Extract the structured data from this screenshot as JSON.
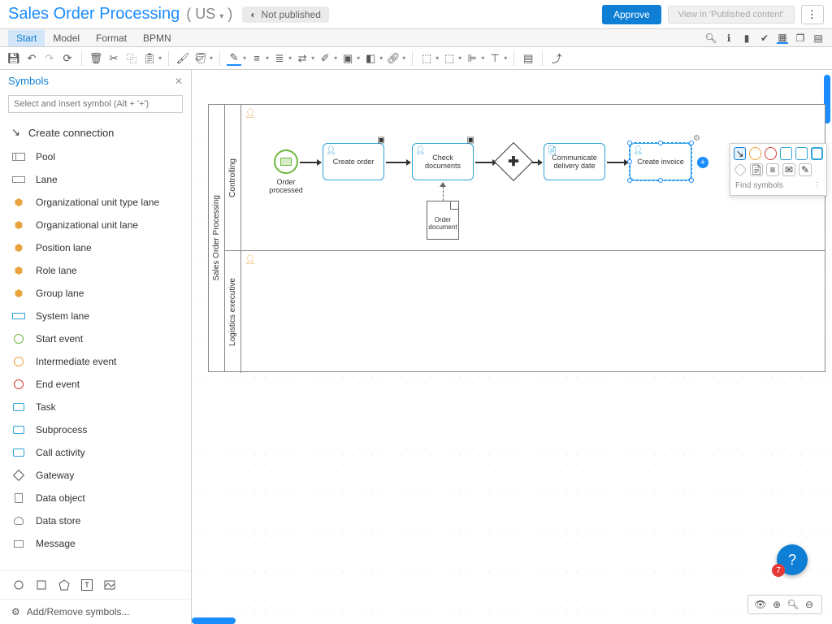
{
  "header": {
    "title": "Sales Order Processing",
    "locale": "US",
    "published_badge": "Not published",
    "approve_label": "Approve",
    "view_label": "View in 'Published content'"
  },
  "tabs": {
    "items": [
      "Start",
      "Model",
      "Format",
      "BPMN"
    ],
    "active_index": 0
  },
  "sidebar": {
    "title": "Symbols",
    "search_placeholder": "Select and insert symbol (Alt + '+')",
    "create_connection": "Create connection",
    "items": [
      {
        "label": "Pool",
        "icon": "pool",
        "color": "#888"
      },
      {
        "label": "Lane",
        "icon": "lane",
        "color": "#888"
      },
      {
        "label": "Organizational unit type lane",
        "icon": "org",
        "color": "#e8a33d"
      },
      {
        "label": "Organizational unit lane",
        "icon": "org",
        "color": "#e8a33d"
      },
      {
        "label": "Position lane",
        "icon": "org",
        "color": "#e8a33d"
      },
      {
        "label": "Role lane",
        "icon": "org",
        "color": "#e8a33d"
      },
      {
        "label": "Group lane",
        "icon": "org",
        "color": "#e8a33d"
      },
      {
        "label": "System lane",
        "icon": "lane",
        "color": "#2ea3d6"
      },
      {
        "label": "Start event",
        "icon": "circle",
        "color": "#6fb83f"
      },
      {
        "label": "Intermediate event",
        "icon": "circle",
        "color": "#e8a33d"
      },
      {
        "label": "End event",
        "icon": "circle",
        "color": "#d23b3b"
      },
      {
        "label": "Task",
        "icon": "task",
        "color": "#2ea3d6"
      },
      {
        "label": "Subprocess",
        "icon": "task",
        "color": "#2ea3d6"
      },
      {
        "label": "Call activity",
        "icon": "task",
        "color": "#2ea3d6"
      },
      {
        "label": "Gateway",
        "icon": "gateway",
        "color": "#555"
      },
      {
        "label": "Data object",
        "icon": "doc",
        "color": "#888"
      },
      {
        "label": "Data store",
        "icon": "db",
        "color": "#888"
      },
      {
        "label": "Message",
        "icon": "msg",
        "color": "#888"
      }
    ],
    "add_remove": "Add/Remove symbols..."
  },
  "diagram": {
    "pool_label": "Sales Order Processing",
    "lanes": [
      {
        "label": "Controlling"
      },
      {
        "label": "Logistics executive"
      }
    ],
    "start_event": {
      "label": "Order processed"
    },
    "tasks": [
      {
        "label": "Create order"
      },
      {
        "label": "Check documents"
      },
      {
        "label": "Communicate delivery date"
      },
      {
        "label": "Create invoice"
      }
    ],
    "document": {
      "label": "Order document"
    },
    "palette_find": "Find symbols"
  },
  "help_badge": "7",
  "colors": {
    "primary": "#1a8cff",
    "approve": "#0f7fd6",
    "task_border": "#2ea3d6",
    "start_border": "#6fb83f",
    "org": "#e8a33d",
    "end": "#d23b3b"
  }
}
